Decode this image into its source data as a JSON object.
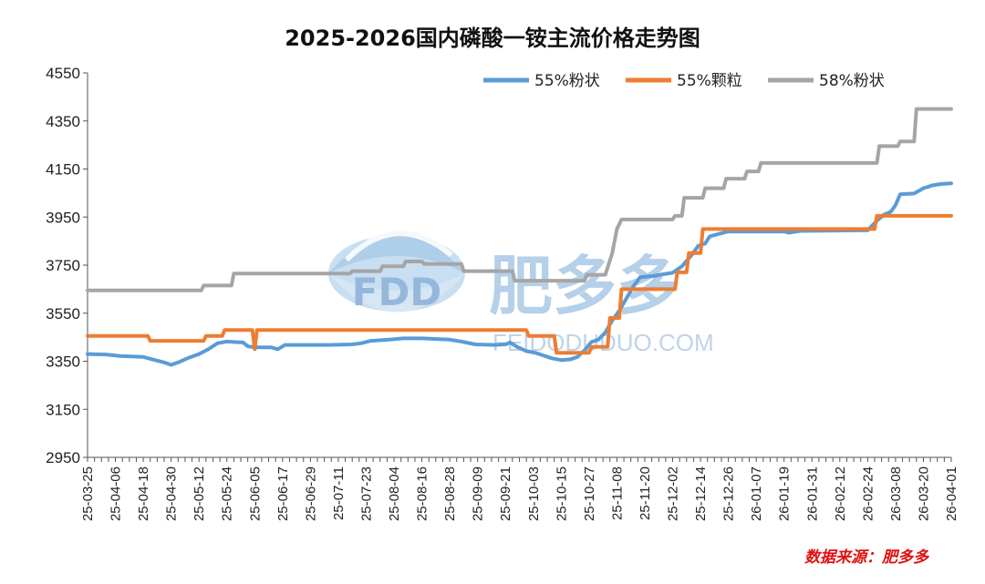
{
  "chart_data": {
    "type": "line",
    "title": "2025-2026国内磷酸一铵主流价格走势图",
    "ylim": [
      2950,
      4550
    ],
    "yticks": [
      2950,
      3150,
      3350,
      3550,
      3750,
      3950,
      4150,
      4350,
      4550
    ],
    "grid": false,
    "legend_position": "top-right",
    "x_start": "25-03-25",
    "x_end": "26-04-01",
    "xtick_labels": [
      "25-03-25",
      "25-04-06",
      "25-04-18",
      "25-04-30",
      "25-05-12",
      "25-05-24",
      "25-06-05",
      "25-06-17",
      "25-06-29",
      "25-07-11",
      "25-07-23",
      "25-08-04",
      "25-08-16",
      "25-08-28",
      "25-09-09",
      "25-09-21",
      "25-10-03",
      "25-10-15",
      "25-10-27",
      "25-11-08",
      "25-11-20",
      "25-12-02",
      "25-12-14",
      "25-12-26",
      "26-01-07",
      "26-01-19",
      "26-01-31",
      "26-02-12",
      "26-02-24",
      "26-03-08",
      "26-03-20",
      "26-04-01"
    ],
    "series": [
      {
        "name": "55%粉状",
        "color": "#5b9bd5",
        "points": [
          [
            "25-03-25",
            3380
          ],
          [
            "25-04-02",
            3378
          ],
          [
            "25-04-08",
            3372
          ],
          [
            "25-04-18",
            3368
          ],
          [
            "25-04-23",
            3355
          ],
          [
            "25-04-27",
            3345
          ],
          [
            "25-04-30",
            3335
          ],
          [
            "25-05-03",
            3345
          ],
          [
            "25-05-07",
            3362
          ],
          [
            "25-05-12",
            3380
          ],
          [
            "25-05-16",
            3400
          ],
          [
            "25-05-20",
            3425
          ],
          [
            "25-05-24",
            3432
          ],
          [
            "25-05-31",
            3428
          ],
          [
            "25-06-02",
            3412
          ],
          [
            "25-06-05",
            3408
          ],
          [
            "25-06-12",
            3408
          ],
          [
            "25-06-15",
            3400
          ],
          [
            "25-06-18",
            3418
          ],
          [
            "25-06-26",
            3418
          ],
          [
            "25-07-07",
            3418
          ],
          [
            "25-07-17",
            3420
          ],
          [
            "25-07-21",
            3425
          ],
          [
            "25-07-25",
            3435
          ],
          [
            "25-08-02",
            3440
          ],
          [
            "25-08-08",
            3445
          ],
          [
            "25-08-16",
            3445
          ],
          [
            "25-08-28",
            3440
          ],
          [
            "25-09-02",
            3432
          ],
          [
            "25-09-08",
            3420
          ],
          [
            "25-09-16",
            3418
          ],
          [
            "25-09-21",
            3420
          ],
          [
            "25-09-23",
            3428
          ],
          [
            "25-09-26",
            3410
          ],
          [
            "25-09-30",
            3392
          ],
          [
            "25-10-04",
            3385
          ],
          [
            "25-10-07",
            3375
          ],
          [
            "25-10-11",
            3362
          ],
          [
            "25-10-15",
            3355
          ],
          [
            "25-10-19",
            3358
          ],
          [
            "25-10-22",
            3368
          ],
          [
            "25-10-25",
            3395
          ],
          [
            "25-10-28",
            3430
          ],
          [
            "25-10-31",
            3440
          ],
          [
            "25-11-03",
            3470
          ],
          [
            "25-11-06",
            3520
          ],
          [
            "25-11-09",
            3560
          ],
          [
            "25-11-12",
            3610
          ],
          [
            "25-11-15",
            3660
          ],
          [
            "25-11-18",
            3700
          ],
          [
            "25-11-24",
            3705
          ],
          [
            "25-11-28",
            3712
          ],
          [
            "25-12-02",
            3718
          ],
          [
            "25-12-06",
            3745
          ],
          [
            "25-12-10",
            3790
          ],
          [
            "25-12-13",
            3830
          ],
          [
            "25-12-16",
            3840
          ],
          [
            "25-12-18",
            3870
          ],
          [
            "25-12-22",
            3880
          ],
          [
            "25-12-26",
            3890
          ],
          [
            "26-01-19",
            3890
          ],
          [
            "26-01-21",
            3885
          ],
          [
            "26-01-26",
            3892
          ],
          [
            "26-02-24",
            3895
          ],
          [
            "26-02-28",
            3935
          ],
          [
            "26-03-03",
            3960
          ],
          [
            "26-03-06",
            3972
          ],
          [
            "26-03-08",
            4000
          ],
          [
            "26-03-10",
            4045
          ],
          [
            "26-03-16",
            4048
          ],
          [
            "26-03-20",
            4070
          ],
          [
            "26-03-24",
            4082
          ],
          [
            "26-03-28",
            4088
          ],
          [
            "26-04-01",
            4090
          ]
        ]
      },
      {
        "name": "55%颗粒",
        "color": "#ed7d31",
        "points": [
          [
            "25-03-25",
            3455
          ],
          [
            "25-04-20",
            3455
          ],
          [
            "25-04-21",
            3435
          ],
          [
            "25-05-14",
            3435
          ],
          [
            "25-05-15",
            3455
          ],
          [
            "25-05-22",
            3455
          ],
          [
            "25-05-23",
            3480
          ],
          [
            "25-06-04",
            3480
          ],
          [
            "25-06-05",
            3400
          ],
          [
            "25-06-06",
            3480
          ],
          [
            "25-09-30",
            3480
          ],
          [
            "25-10-01",
            3455
          ],
          [
            "25-10-12",
            3455
          ],
          [
            "25-10-13",
            3385
          ],
          [
            "25-10-27",
            3385
          ],
          [
            "25-10-28",
            3410
          ],
          [
            "25-11-04",
            3410
          ],
          [
            "25-11-05",
            3530
          ],
          [
            "25-11-09",
            3530
          ],
          [
            "25-11-10",
            3650
          ],
          [
            "25-12-03",
            3650
          ],
          [
            "25-12-04",
            3720
          ],
          [
            "25-12-08",
            3720
          ],
          [
            "25-12-09",
            3800
          ],
          [
            "25-12-14",
            3800
          ],
          [
            "25-12-15",
            3900
          ],
          [
            "26-02-27",
            3900
          ],
          [
            "26-02-28",
            3955
          ],
          [
            "26-04-01",
            3955
          ]
        ]
      },
      {
        "name": "58%粉状",
        "color": "#a5a5a5",
        "points": [
          [
            "25-03-25",
            3645
          ],
          [
            "25-05-13",
            3645
          ],
          [
            "25-05-14",
            3665
          ],
          [
            "25-05-26",
            3665
          ],
          [
            "25-05-27",
            3715
          ],
          [
            "25-07-16",
            3715
          ],
          [
            "25-07-17",
            3725
          ],
          [
            "25-07-29",
            3725
          ],
          [
            "25-07-30",
            3745
          ],
          [
            "25-08-08",
            3745
          ],
          [
            "25-08-09",
            3765
          ],
          [
            "25-08-16",
            3765
          ],
          [
            "25-08-17",
            3755
          ],
          [
            "25-09-02",
            3755
          ],
          [
            "25-09-03",
            3725
          ],
          [
            "25-09-24",
            3725
          ],
          [
            "25-09-25",
            3685
          ],
          [
            "25-10-25",
            3685
          ],
          [
            "25-10-26",
            3710
          ],
          [
            "25-11-03",
            3710
          ],
          [
            "25-11-06",
            3800
          ],
          [
            "25-11-08",
            3900
          ],
          [
            "25-11-10",
            3940
          ],
          [
            "25-12-02",
            3940
          ],
          [
            "25-12-03",
            3955
          ],
          [
            "25-12-06",
            3955
          ],
          [
            "25-12-07",
            4030
          ],
          [
            "25-12-15",
            4030
          ],
          [
            "25-12-16",
            4070
          ],
          [
            "25-12-24",
            4070
          ],
          [
            "25-12-25",
            4110
          ],
          [
            "26-01-02",
            4110
          ],
          [
            "26-01-03",
            4140
          ],
          [
            "26-01-08",
            4140
          ],
          [
            "26-01-09",
            4175
          ],
          [
            "26-02-28",
            4175
          ],
          [
            "26-03-01",
            4245
          ],
          [
            "26-03-09",
            4245
          ],
          [
            "26-03-10",
            4265
          ],
          [
            "26-03-16",
            4265
          ],
          [
            "26-03-17",
            4400
          ],
          [
            "26-04-01",
            4400
          ]
        ]
      }
    ]
  },
  "watermark": {
    "logo_text": "FDD",
    "brand": "肥多多",
    "url": "FEIDODUDUO.COM"
  },
  "source_note": "数据来源：肥多多"
}
